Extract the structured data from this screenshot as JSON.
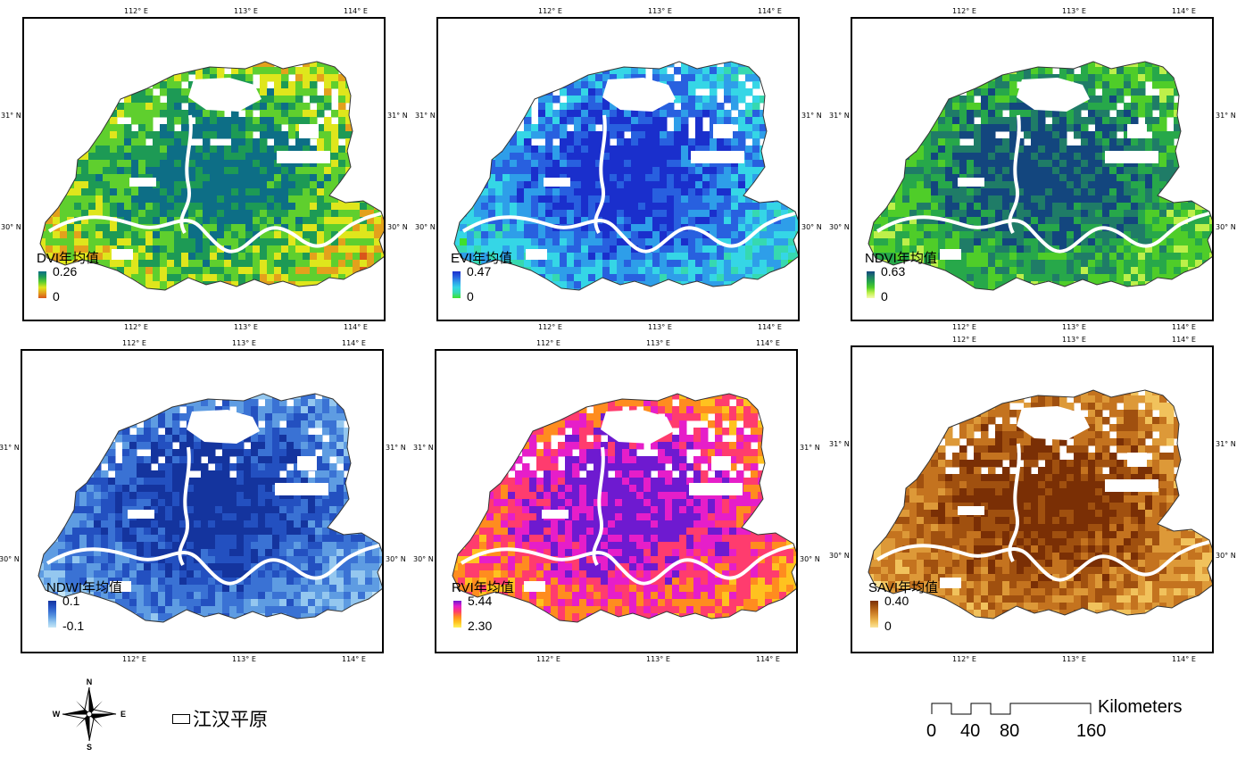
{
  "panels": [
    {
      "id": "dvi",
      "title": "DVI年均值",
      "max": "0.26",
      "min": "0",
      "colors": [
        "#d8561b",
        "#e3a11c",
        "#dfe61c",
        "#5fcf2e",
        "#1d9a55",
        "#0d6e86"
      ]
    },
    {
      "id": "evi",
      "title": "EVI年均值",
      "max": "0.47",
      "min": "0",
      "colors": [
        "#3fe02c",
        "#36d9b0",
        "#35d6e6",
        "#2e9ee9",
        "#2860df",
        "#1a2fcc"
      ]
    },
    {
      "id": "ndvi",
      "title": "NDVI年均值",
      "max": "0.63",
      "min": "0",
      "colors": [
        "#f7fbb0",
        "#bdf04a",
        "#4fcd29",
        "#27a84a",
        "#1f7c67",
        "#13467e"
      ]
    },
    {
      "id": "ndwi",
      "title": "NDWI年均值",
      "max": "0.1",
      "min": "-0.1",
      "colors": [
        "#c5e6f7",
        "#94c7ef",
        "#5e9ce2",
        "#3a72d4",
        "#2350c0",
        "#14349e"
      ]
    },
    {
      "id": "rvi",
      "title": "RVI年均值",
      "max": "5.44",
      "min": "2.30",
      "colors": [
        "#fff25a",
        "#ffc21f",
        "#ff8c1f",
        "#ff3c6e",
        "#e61ec9",
        "#6e1ad0"
      ]
    },
    {
      "id": "savi",
      "title": "SAVI年均值",
      "max": "0.40",
      "min": "0",
      "colors": [
        "#fbe49a",
        "#f1c25c",
        "#dd9938",
        "#c4731f",
        "#a0500f",
        "#7a2f05"
      ]
    }
  ],
  "axis": {
    "lon_labels": [
      "112° E",
      "113° E",
      "114° E"
    ],
    "lat_labels": [
      "31° N",
      "30° N"
    ]
  },
  "compass": {
    "n": "N",
    "s": "S",
    "e": "E",
    "w": "W"
  },
  "boundary_label": "江汉平原",
  "scalebar": {
    "unit": "Kilometers",
    "ticks": [
      "0",
      "40",
      "80",
      "160"
    ]
  }
}
